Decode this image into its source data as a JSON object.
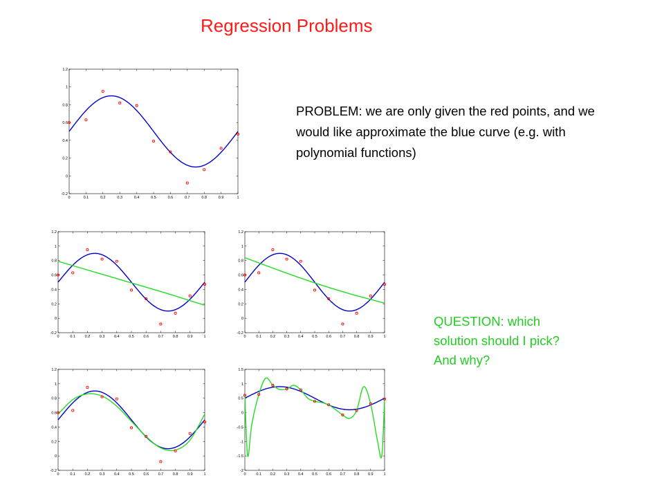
{
  "title": "Regression Problems",
  "problem_text": "PROBLEM: we are only given the red points, and we would like approximate the blue curve (e.g. with polynomial functions)",
  "question_lines": [
    "QUESTION: which",
    "solution should I pick?",
    "And why?"
  ],
  "colors": {
    "title": "#ff1a1a",
    "question": "#22cc22",
    "true_curve": "#0000cc",
    "fit_curve": "#22dd22",
    "points": "#ff0000"
  },
  "chart_data": [
    {
      "id": "main",
      "type": "scatter",
      "xlim": [
        0,
        1
      ],
      "ylim": [
        -0.2,
        1.2
      ],
      "xticks": [
        "0",
        "0.1",
        "0.2",
        "0.3",
        "0.4",
        "0.5",
        "0.6",
        "0.7",
        "0.8",
        "0.9",
        "1"
      ],
      "yticks": [
        "-0.2",
        "0",
        "0.2",
        "0.4",
        "0.6",
        "0.8",
        "1",
        "1.2"
      ],
      "points": {
        "x": [
          0,
          0.1,
          0.2,
          0.3,
          0.4,
          0.5,
          0.6,
          0.7,
          0.8,
          0.9,
          1
        ],
        "y": [
          0.6,
          0.63,
          0.95,
          0.82,
          0.79,
          0.39,
          0.27,
          -0.08,
          0.07,
          0.31,
          0.47
        ]
      },
      "true_curve": "0.5 + 0.4*sin(2*pi*x)"
    },
    {
      "id": "deg1",
      "type": "scatter",
      "xlim": [
        0,
        1
      ],
      "ylim": [
        -0.2,
        1.2
      ],
      "xticks": [
        "0",
        "0.1",
        "0.2",
        "0.3",
        "0.4",
        "0.5",
        "0.6",
        "0.7",
        "0.8",
        "0.9",
        "1"
      ],
      "yticks": [
        "-0.2",
        "0",
        "0.2",
        "0.4",
        "0.6",
        "0.8",
        "1",
        "1.2"
      ],
      "points": {
        "x": [
          0,
          0.1,
          0.2,
          0.3,
          0.4,
          0.5,
          0.6,
          0.7,
          0.8,
          0.9,
          1
        ],
        "y": [
          0.6,
          0.63,
          0.95,
          0.82,
          0.79,
          0.39,
          0.27,
          -0.08,
          0.07,
          0.31,
          0.47
        ]
      },
      "true_curve": "0.5 + 0.4*sin(2*pi*x)",
      "fit_curve": {
        "x": [
          0,
          0.25,
          0.5,
          0.75,
          1
        ],
        "y": [
          0.79,
          0.64,
          0.49,
          0.34,
          0.18
        ]
      }
    },
    {
      "id": "deg2",
      "type": "scatter",
      "xlim": [
        0,
        1
      ],
      "ylim": [
        -0.2,
        1.2
      ],
      "xticks": [
        "0",
        "0.1",
        "0.2",
        "0.3",
        "0.4",
        "0.5",
        "0.6",
        "0.7",
        "0.8",
        "0.9",
        "1"
      ],
      "yticks": [
        "-0.2",
        "0",
        "0.2",
        "0.4",
        "0.6",
        "0.8",
        "1",
        "1.2"
      ],
      "points": {
        "x": [
          0,
          0.1,
          0.2,
          0.3,
          0.4,
          0.5,
          0.6,
          0.7,
          0.8,
          0.9,
          1
        ],
        "y": [
          0.6,
          0.63,
          0.95,
          0.82,
          0.79,
          0.39,
          0.27,
          -0.08,
          0.07,
          0.31,
          0.47
        ]
      },
      "true_curve": "0.5 + 0.4*sin(2*pi*x)",
      "fit_curve": {
        "x": [
          0,
          0.25,
          0.5,
          0.75,
          1
        ],
        "y": [
          0.84,
          0.66,
          0.49,
          0.34,
          0.21
        ]
      }
    },
    {
      "id": "deg3",
      "type": "scatter",
      "xlim": [
        0,
        1
      ],
      "ylim": [
        -0.2,
        1.2
      ],
      "xticks": [
        "0",
        "0.1",
        "0.2",
        "0.3",
        "0.4",
        "0.5",
        "0.6",
        "0.7",
        "0.8",
        "0.9",
        "1"
      ],
      "yticks": [
        "-0.2",
        "0",
        "0.2",
        "0.4",
        "0.6",
        "0.8",
        "1",
        "1.2"
      ],
      "points": {
        "x": [
          0,
          0.1,
          0.2,
          0.3,
          0.4,
          0.5,
          0.6,
          0.7,
          0.8,
          0.9,
          1
        ],
        "y": [
          0.6,
          0.63,
          0.95,
          0.82,
          0.79,
          0.39,
          0.27,
          -0.08,
          0.07,
          0.31,
          0.47
        ]
      },
      "true_curve": "0.5 + 0.4*sin(2*pi*x)",
      "fit_curve": {
        "x": [
          0,
          0.1,
          0.2,
          0.3,
          0.4,
          0.5,
          0.6,
          0.7,
          0.8,
          0.9,
          1
        ],
        "y": [
          0.58,
          0.78,
          0.86,
          0.83,
          0.69,
          0.48,
          0.27,
          0.11,
          0.08,
          0.22,
          0.58
        ]
      }
    },
    {
      "id": "deg9",
      "type": "scatter",
      "xlim": [
        0,
        1
      ],
      "ylim": [
        -2,
        1.5
      ],
      "xticks": [
        "0",
        "0.1",
        "0.2",
        "0.3",
        "0.4",
        "0.5",
        "0.6",
        "0.7",
        "0.8",
        "0.9",
        "1"
      ],
      "yticks": [
        "-2",
        "-1.5",
        "-1",
        "-0.5",
        "0",
        "0.5",
        "1",
        "1.5"
      ],
      "points": {
        "x": [
          0,
          0.1,
          0.2,
          0.3,
          0.4,
          0.5,
          0.6,
          0.7,
          0.8,
          0.9,
          1
        ],
        "y": [
          0.6,
          0.63,
          0.95,
          0.82,
          0.79,
          0.39,
          0.27,
          -0.08,
          0.07,
          0.31,
          0.47
        ]
      },
      "true_curve": "0.5 + 0.4*sin(2*pi*x)",
      "fit_curve": {
        "x": [
          0,
          0.02,
          0.05,
          0.1,
          0.15,
          0.2,
          0.25,
          0.3,
          0.35,
          0.4,
          0.45,
          0.5,
          0.55,
          0.6,
          0.65,
          0.7,
          0.75,
          0.8,
          0.85,
          0.9,
          0.95,
          0.98,
          1
        ],
        "y": [
          0.6,
          -1.5,
          -0.4,
          0.63,
          1.2,
          0.95,
          0.8,
          0.82,
          0.95,
          0.79,
          0.5,
          0.39,
          0.35,
          0.27,
          0.1,
          -0.08,
          -0.2,
          0.07,
          0.9,
          0.31,
          -1.0,
          -1.5,
          0.47
        ]
      }
    }
  ]
}
